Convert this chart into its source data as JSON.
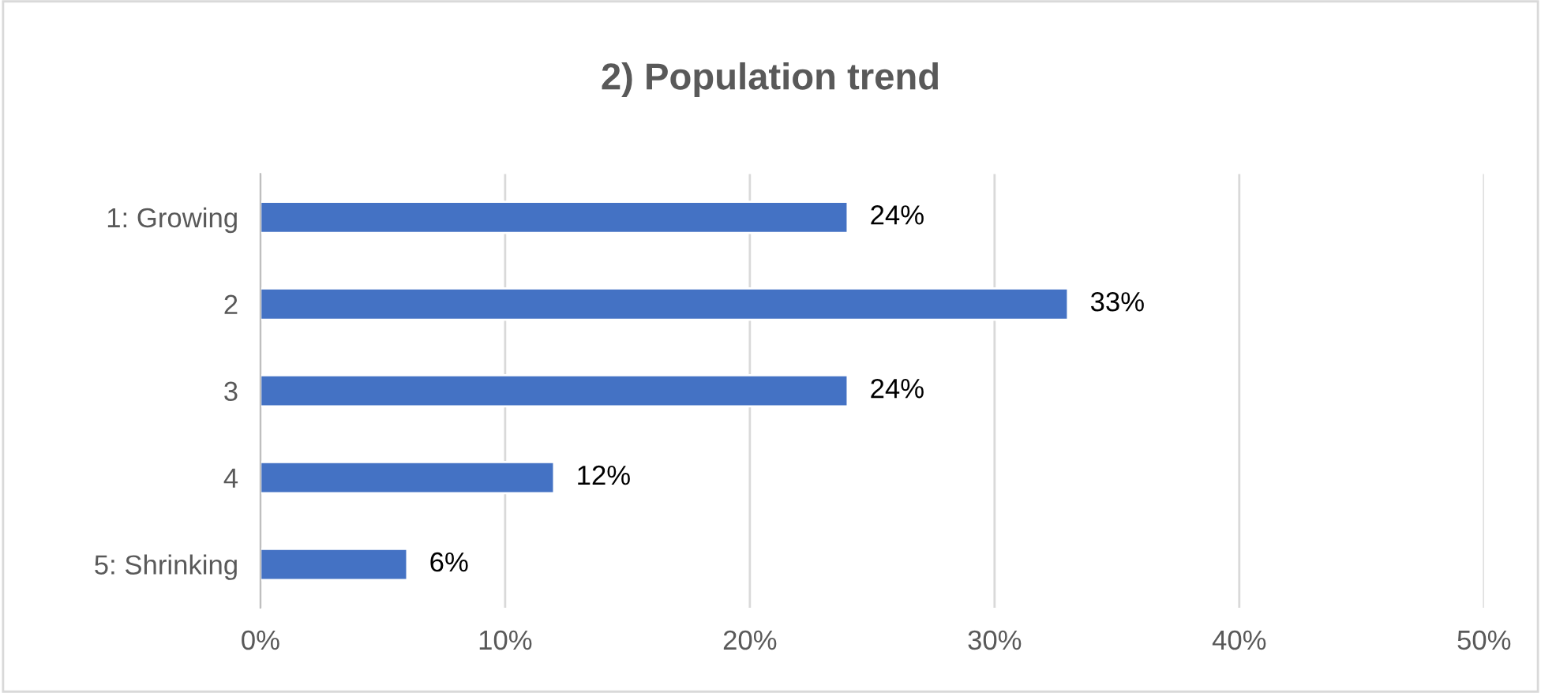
{
  "chart_data": {
    "type": "bar",
    "orientation": "horizontal",
    "title": "2) Population trend",
    "categories": [
      "1: Growing",
      "2",
      "3",
      "4",
      "5: Shrinking"
    ],
    "values": [
      24,
      33,
      24,
      12,
      6
    ],
    "value_labels": [
      "24%",
      "33%",
      "24%",
      "12%",
      "6%"
    ],
    "color": "#4472c4",
    "xlim": [
      0,
      50
    ],
    "xticks": [
      {
        "value": 0,
        "label": "0%"
      },
      {
        "value": 10,
        "label": "10%"
      },
      {
        "value": 20,
        "label": "20%"
      },
      {
        "value": 30,
        "label": "30%"
      },
      {
        "value": 40,
        "label": "40%"
      },
      {
        "value": 50,
        "label": "50%"
      }
    ],
    "grid": "x",
    "legend": false
  }
}
